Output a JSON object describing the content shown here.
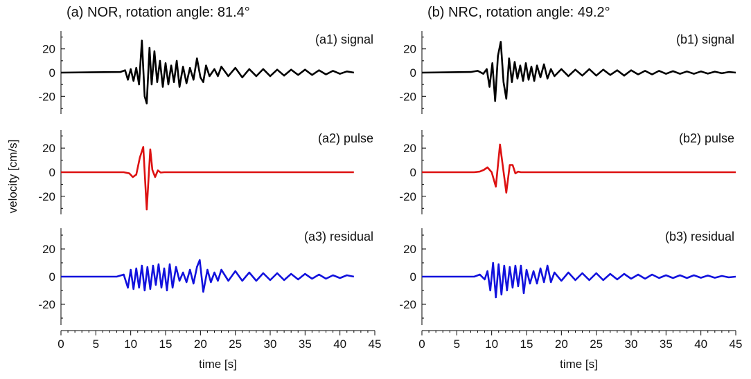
{
  "figure": {
    "ylabel": "velocity [cm/s]",
    "xlabel": "time [s]"
  },
  "chart_data": [
    {
      "type": "line",
      "title": "(a) NOR, rotation angle: 81.4°",
      "xlabel": "time [s]",
      "ylabel": "velocity [cm/s]",
      "xlim": [
        0,
        45
      ],
      "xticks": [
        0,
        5,
        10,
        15,
        20,
        25,
        30,
        35,
        40,
        45
      ],
      "grid": false,
      "panels": [
        {
          "label": "(a1) signal",
          "color": "#000000",
          "ylim": [
            -35,
            35
          ],
          "yticks": [
            -20,
            0,
            20
          ],
          "x": [
            0,
            8.5,
            9.2,
            9.6,
            10.0,
            10.4,
            10.8,
            11.2,
            11.6,
            12.0,
            12.3,
            12.7,
            13.0,
            13.4,
            13.8,
            14.2,
            14.6,
            15.0,
            15.4,
            15.8,
            16.2,
            16.6,
            17.0,
            17.5,
            18.0,
            18.5,
            19.0,
            19.5,
            20.0,
            20.4,
            20.8,
            21.3,
            22.0,
            22.5,
            23.0,
            24.0,
            25.0,
            26.0,
            27.0,
            28.0,
            29.0,
            30.0,
            31.0,
            32.0,
            33.0,
            34.0,
            35.0,
            36.0,
            37.0,
            38.0,
            39.0,
            40.0,
            41.0,
            42.0
          ],
          "y": [
            0,
            0.5,
            2,
            -6,
            3,
            -7,
            4,
            -10,
            27,
            -20,
            -26,
            21,
            -10,
            18,
            -8,
            10,
            -12,
            8,
            -10,
            6,
            -8,
            10,
            -12,
            5,
            -9,
            4,
            -6,
            12,
            -4,
            -8,
            6,
            -3,
            3,
            -3,
            5,
            -3,
            4,
            -4,
            3,
            -3,
            3,
            -3,
            2.5,
            -2.5,
            2.5,
            -2,
            2.5,
            -2,
            2,
            -1.5,
            1.5,
            -1,
            1,
            0
          ]
        },
        {
          "label": "(a2) pulse",
          "color": "#dd1111",
          "ylim": [
            -35,
            35
          ],
          "yticks": [
            -20,
            0,
            20
          ],
          "x": [
            0,
            9.0,
            9.8,
            10.3,
            10.8,
            11.3,
            11.8,
            12.3,
            12.8,
            13.1,
            13.5,
            13.9,
            14.3,
            14.8,
            42.0
          ],
          "y": [
            0,
            0,
            -1,
            -4,
            -2,
            12,
            21,
            -31,
            19,
            2,
            -4,
            1.5,
            -0.3,
            0,
            0
          ]
        },
        {
          "label": "(a3) residual",
          "color": "#1111dd",
          "ylim": [
            -35,
            35
          ],
          "yticks": [
            -20,
            0,
            20
          ],
          "x": [
            0,
            8.0,
            9.0,
            9.6,
            10.0,
            10.4,
            10.8,
            11.2,
            11.6,
            12.0,
            12.4,
            12.8,
            13.2,
            13.6,
            14.0,
            14.4,
            14.8,
            15.2,
            15.6,
            16.0,
            16.5,
            17.0,
            17.5,
            18.0,
            18.5,
            19.0,
            19.5,
            19.9,
            20.4,
            21.0,
            21.5,
            22.0,
            22.5,
            23.0,
            24.0,
            25.0,
            26.0,
            27.0,
            28.0,
            29.0,
            30.0,
            31.0,
            32.0,
            33.0,
            34.0,
            35.0,
            36.0,
            37.0,
            38.0,
            39.0,
            40.0,
            41.0,
            42.0
          ],
          "y": [
            0,
            0,
            1.5,
            -8,
            5,
            -9,
            6,
            -8,
            8,
            -10,
            7,
            -9,
            8,
            -6,
            9,
            -8,
            6,
            -10,
            9,
            -8,
            7,
            -3,
            3,
            -4,
            5,
            -5,
            7,
            12,
            -11,
            5,
            -4,
            3,
            -3,
            5,
            -3,
            4,
            -3,
            3,
            -3,
            2.5,
            -2.5,
            2.5,
            -2.5,
            2,
            -2,
            2,
            -1.5,
            1.5,
            -1.5,
            1,
            -1,
            1,
            0
          ]
        }
      ]
    },
    {
      "type": "line",
      "title": "(b) NRC, rotation angle: 49.2°",
      "xlabel": "time [s]",
      "ylabel": "",
      "xlim": [
        0,
        45
      ],
      "xticks": [
        0,
        5,
        10,
        15,
        20,
        25,
        30,
        35,
        40,
        45
      ],
      "grid": false,
      "panels": [
        {
          "label": "(b1) signal",
          "color": "#000000",
          "ylim": [
            -35,
            35
          ],
          "yticks": [
            -20,
            0,
            20
          ],
          "x": [
            0,
            7.0,
            8.0,
            8.8,
            9.3,
            9.7,
            10.1,
            10.5,
            10.9,
            11.3,
            11.7,
            12.1,
            12.5,
            12.9,
            13.3,
            13.7,
            14.1,
            14.5,
            14.9,
            15.3,
            15.7,
            16.1,
            16.5,
            17.0,
            17.5,
            18.0,
            18.5,
            19.0,
            20.0,
            21.0,
            22.0,
            23.0,
            24.0,
            25.0,
            26.0,
            27.0,
            28.0,
            29.0,
            30.0,
            31.0,
            32.0,
            33.0,
            34.0,
            35.0,
            36.0,
            37.0,
            38.0,
            39.0,
            40.0,
            41.0,
            42.0,
            43.0,
            44.0,
            45.0
          ],
          "y": [
            0,
            0.5,
            1.5,
            -1,
            3,
            -12,
            8,
            -24,
            14,
            26,
            -8,
            -22,
            12,
            -8,
            9,
            -5,
            6,
            -7,
            8,
            -6,
            5,
            -7,
            6,
            -4,
            7,
            -5,
            3,
            -3,
            3,
            -3,
            2.5,
            -2.5,
            3,
            -2.5,
            2.5,
            -2,
            2,
            -2.5,
            2,
            -1.5,
            1.5,
            -1.5,
            1.5,
            -1,
            1.2,
            -1,
            1,
            -1,
            1,
            -0.8,
            0.8,
            -0.5,
            0.5,
            0
          ]
        },
        {
          "label": "(b2) pulse",
          "color": "#dd1111",
          "ylim": [
            -35,
            35
          ],
          "yticks": [
            -20,
            0,
            20
          ],
          "x": [
            0,
            7.5,
            8.3,
            8.9,
            9.4,
            10.0,
            10.6,
            11.2,
            11.6,
            12.1,
            12.6,
            13.0,
            13.4,
            13.8,
            14.2,
            45.0
          ],
          "y": [
            0,
            0,
            0.5,
            2,
            4,
            0,
            -12,
            23,
            5,
            -17,
            6,
            6,
            -1,
            0.5,
            0,
            0
          ]
        },
        {
          "label": "(b3) residual",
          "color": "#1111dd",
          "ylim": [
            -35,
            35
          ],
          "yticks": [
            -20,
            0,
            20
          ],
          "x": [
            0,
            7.5,
            8.3,
            9.0,
            9.4,
            9.8,
            10.2,
            10.6,
            11.0,
            11.4,
            11.8,
            12.2,
            12.6,
            13.0,
            13.4,
            13.8,
            14.2,
            14.6,
            15.0,
            15.5,
            16.0,
            16.5,
            17.0,
            17.5,
            18.0,
            18.5,
            19.0,
            20.0,
            21.0,
            22.0,
            23.0,
            24.0,
            25.0,
            26.0,
            27.0,
            28.0,
            29.0,
            30.0,
            31.0,
            32.0,
            33.0,
            34.0,
            35.0,
            36.0,
            37.0,
            38.0,
            39.0,
            40.0,
            41.0,
            42.0,
            43.0,
            44.0,
            45.0
          ],
          "y": [
            0,
            0,
            1.5,
            -2,
            4,
            -10,
            10,
            -15,
            9,
            -13,
            8,
            -10,
            7,
            -8,
            8,
            -7,
            8,
            -12,
            5,
            -5,
            4,
            -5,
            6,
            -4,
            8,
            -4,
            3,
            -3,
            3,
            -2.5,
            2.5,
            -2.5,
            2.5,
            -2.5,
            2,
            -2,
            2,
            -1.5,
            1.5,
            -1.5,
            1.5,
            -1,
            1,
            -1,
            1,
            -1,
            1,
            -0.8,
            0.8,
            -0.8,
            0.5,
            -0.5,
            0
          ]
        }
      ]
    }
  ]
}
